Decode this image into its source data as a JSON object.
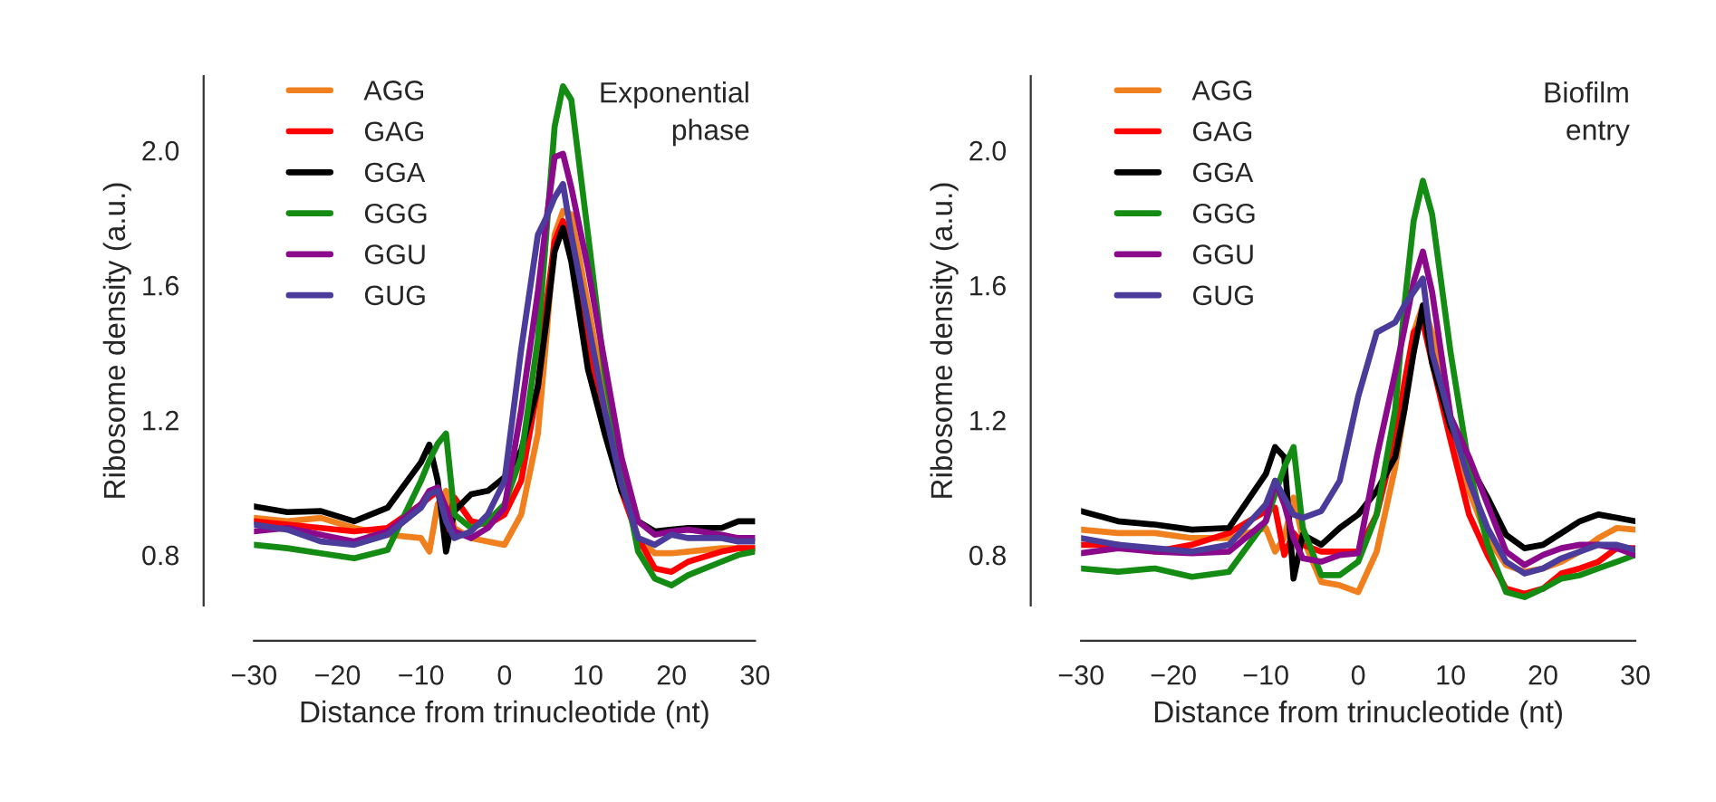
{
  "chart_data": [
    {
      "type": "line",
      "title": "Exponential\nphase",
      "xlabel": "Distance from trinucleotide (nt)",
      "ylabel": "Ribosome density (a.u.)",
      "legend": "top left",
      "grid": false,
      "xlim": [
        -30,
        30
      ],
      "ylim": [
        0.65,
        2.22
      ],
      "xticks": [
        {
          "value": -30,
          "label": "−30"
        },
        {
          "value": -20,
          "label": "−20"
        },
        {
          "value": -10,
          "label": "−10"
        },
        0,
        10,
        20,
        30
      ],
      "yticks": [
        0.8,
        1.2,
        1.6,
        {
          "value": 2.0,
          "label": "2.0"
        }
      ],
      "x": [
        -30,
        -26,
        -22,
        -18,
        -14,
        -10,
        -9,
        -8,
        -7,
        -6,
        -4,
        -2,
        0,
        2,
        4,
        5,
        6,
        7,
        8,
        10,
        12,
        14,
        16,
        18,
        20,
        22,
        26,
        28,
        30
      ],
      "series": [
        {
          "name": "AGG",
          "color": "#f07f1e",
          "values": [
            0.91,
            0.9,
            0.91,
            0.88,
            0.86,
            0.85,
            0.81,
            0.95,
            0.99,
            0.88,
            0.85,
            0.84,
            0.83,
            0.92,
            1.16,
            1.44,
            1.75,
            1.82,
            1.81,
            1.54,
            1.27,
            1.01,
            0.85,
            0.805,
            0.805,
            0.81,
            0.82,
            0.82,
            0.82
          ]
        },
        {
          "name": "GAG",
          "color": "#ff0000",
          "values": [
            0.9,
            0.89,
            0.88,
            0.87,
            0.88,
            0.95,
            0.97,
            0.99,
            0.875,
            0.97,
            0.9,
            0.89,
            0.92,
            1.02,
            1.3,
            1.54,
            1.73,
            1.79,
            1.7,
            1.44,
            1.18,
            0.99,
            0.85,
            0.76,
            0.75,
            0.78,
            0.81,
            0.82,
            0.82
          ]
        },
        {
          "name": "GGA",
          "color": "#000000",
          "values": [
            0.944,
            0.927,
            0.93,
            0.9,
            0.94,
            1.075,
            1.127,
            1.02,
            0.81,
            0.93,
            0.98,
            0.99,
            1.03,
            1.11,
            1.3,
            1.49,
            1.7,
            1.77,
            1.67,
            1.35,
            1.16,
            0.99,
            0.9,
            0.87,
            0.875,
            0.88,
            0.88,
            0.9,
            0.9
          ]
        },
        {
          "name": "GGG",
          "color": "#148c14",
          "values": [
            0.83,
            0.82,
            0.805,
            0.79,
            0.815,
            1.02,
            1.08,
            1.13,
            1.16,
            0.92,
            0.88,
            0.9,
            0.95,
            1.09,
            1.44,
            1.75,
            2.07,
            2.19,
            2.15,
            1.75,
            1.34,
            1.06,
            0.81,
            0.73,
            0.71,
            0.74,
            0.78,
            0.8,
            0.81
          ]
        },
        {
          "name": "GGU",
          "color": "#8b0a8b",
          "values": [
            0.87,
            0.88,
            0.86,
            0.84,
            0.87,
            0.95,
            0.99,
            1.0,
            0.94,
            0.87,
            0.85,
            0.88,
            0.94,
            1.23,
            1.58,
            1.79,
            1.98,
            1.99,
            1.89,
            1.65,
            1.37,
            1.09,
            0.9,
            0.86,
            0.87,
            0.875,
            0.86,
            0.85,
            0.85
          ]
        },
        {
          "name": "GUG",
          "color": "#4b3c9b",
          "values": [
            0.89,
            0.875,
            0.84,
            0.83,
            0.86,
            0.94,
            0.98,
            0.99,
            0.9,
            0.85,
            0.87,
            0.92,
            1.02,
            1.41,
            1.75,
            1.8,
            1.86,
            1.9,
            1.75,
            1.49,
            1.23,
            1.01,
            0.85,
            0.83,
            0.86,
            0.85,
            0.85,
            0.84,
            0.84
          ]
        }
      ]
    },
    {
      "type": "line",
      "title": "Biofilm\nentry",
      "xlabel": "Distance from trinucleotide (nt)",
      "ylabel": "Ribosome density (a.u.)",
      "legend": "top left",
      "grid": false,
      "xlim": [
        -30,
        30
      ],
      "ylim": [
        0.65,
        2.22
      ],
      "xticks": [
        {
          "value": -30,
          "label": "−30"
        },
        {
          "value": -20,
          "label": "−20"
        },
        {
          "value": -10,
          "label": "−10"
        },
        0,
        10,
        20,
        30
      ],
      "yticks": [
        0.8,
        1.2,
        1.6,
        {
          "value": 2.0,
          "label": "2.0"
        }
      ],
      "x": [
        -30,
        -26,
        -22,
        -18,
        -14,
        -10,
        -9,
        -8,
        -7,
        -6,
        -4,
        -2,
        0,
        2,
        4,
        5,
        6,
        7,
        8,
        10,
        12,
        14,
        16,
        18,
        20,
        22,
        24,
        26,
        28,
        30
      ],
      "series": [
        {
          "name": "AGG",
          "color": "#f07f1e",
          "values": [
            0.875,
            0.865,
            0.865,
            0.85,
            0.85,
            0.88,
            0.81,
            0.85,
            0.97,
            0.85,
            0.72,
            0.71,
            0.69,
            0.81,
            1.06,
            1.23,
            1.46,
            1.54,
            1.46,
            1.2,
            0.99,
            0.85,
            0.77,
            0.75,
            0.76,
            0.78,
            0.81,
            0.85,
            0.88,
            0.875
          ]
        },
        {
          "name": "GAG",
          "color": "#ff0000",
          "values": [
            0.83,
            0.83,
            0.81,
            0.83,
            0.865,
            0.93,
            0.94,
            0.8,
            0.865,
            0.83,
            0.81,
            0.81,
            0.81,
            0.92,
            1.14,
            1.31,
            1.46,
            1.49,
            1.37,
            1.14,
            0.92,
            0.8,
            0.7,
            0.685,
            0.7,
            0.745,
            0.76,
            0.78,
            0.82,
            0.82
          ]
        },
        {
          "name": "GGA",
          "color": "#000000",
          "values": [
            0.93,
            0.9,
            0.89,
            0.875,
            0.88,
            1.04,
            1.12,
            1.09,
            0.73,
            0.86,
            0.83,
            0.88,
            0.92,
            0.99,
            1.09,
            1.23,
            1.4,
            1.54,
            1.37,
            1.18,
            1.07,
            0.97,
            0.86,
            0.82,
            0.83,
            0.865,
            0.9,
            0.92,
            0.91,
            0.9
          ]
        },
        {
          "name": "GGG",
          "color": "#148c14",
          "values": [
            0.76,
            0.75,
            0.76,
            0.735,
            0.75,
            0.9,
            0.98,
            1.06,
            1.12,
            0.88,
            0.74,
            0.74,
            0.78,
            0.92,
            1.23,
            1.54,
            1.79,
            1.91,
            1.81,
            1.4,
            1.06,
            0.83,
            0.69,
            0.675,
            0.7,
            0.73,
            0.74,
            0.76,
            0.78,
            0.8
          ]
        },
        {
          "name": "GGU",
          "color": "#8b0a8b",
          "values": [
            0.805,
            0.82,
            0.81,
            0.805,
            0.81,
            0.9,
            1.02,
            0.95,
            0.85,
            0.79,
            0.78,
            0.8,
            0.805,
            1.09,
            1.34,
            1.47,
            1.61,
            1.7,
            1.58,
            1.21,
            1.09,
            0.95,
            0.81,
            0.77,
            0.8,
            0.82,
            0.83,
            0.83,
            0.82,
            0.8
          ]
        },
        {
          "name": "GUG",
          "color": "#4b3c9b",
          "values": [
            0.85,
            0.83,
            0.82,
            0.81,
            0.83,
            0.95,
            1.02,
            0.97,
            0.92,
            0.91,
            0.93,
            1.02,
            1.27,
            1.46,
            1.49,
            1.54,
            1.58,
            1.62,
            1.4,
            1.2,
            1.02,
            0.88,
            0.78,
            0.745,
            0.76,
            0.79,
            0.81,
            0.83,
            0.83,
            0.815
          ]
        }
      ]
    }
  ]
}
